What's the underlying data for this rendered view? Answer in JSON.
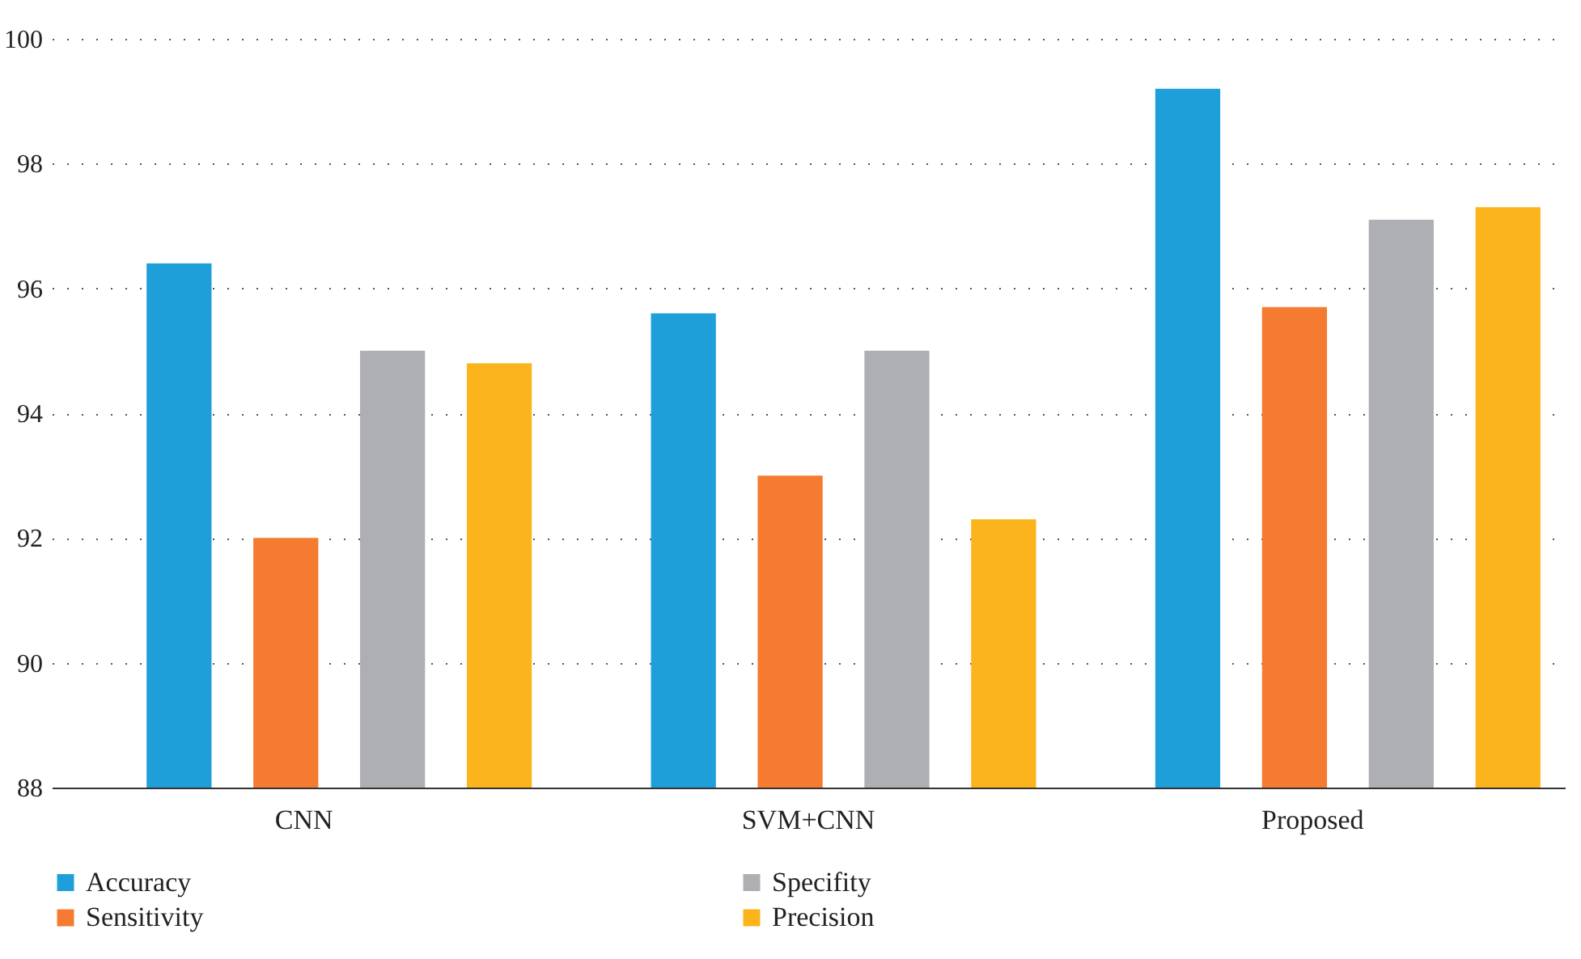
{
  "chart_data": {
    "type": "bar",
    "categories": [
      "CNN",
      "SVM+CNN",
      "Proposed"
    ],
    "series": [
      {
        "name": "Accuracy",
        "color": "#1e9fd9",
        "values": [
          96.4,
          95.6,
          99.2
        ]
      },
      {
        "name": "Sensitivity",
        "color": "#f47b30",
        "values": [
          92.0,
          93.0,
          95.7
        ]
      },
      {
        "name": "Specifity",
        "color": "#adafb2",
        "values": [
          95.0,
          95.0,
          97.1
        ]
      },
      {
        "name": "Precision",
        "color": "#fbb41c",
        "values": [
          94.8,
          92.3,
          97.3
        ]
      }
    ],
    "ylim": [
      88,
      100
    ],
    "yticks": [
      88,
      90,
      92,
      94,
      96,
      98,
      100
    ],
    "grid": "y",
    "legend": "bottom left"
  }
}
